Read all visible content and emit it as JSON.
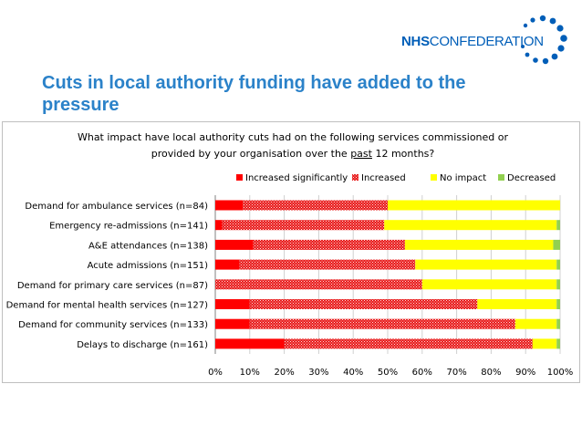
{
  "header": {
    "logo_bold": "NHS",
    "logo_light": "CONFEDERATION",
    "slide_title": "Cuts in local authority funding have added to the pressure"
  },
  "colors": {
    "increased_significantly": "#FF0000",
    "increased": "#E81818",
    "no_impact": "#FFFF00",
    "decreased": "#92D050",
    "title_blue": "#2B82C9",
    "logo_blue": "#005EB8"
  },
  "chart_data": {
    "type": "bar",
    "orientation": "horizontal",
    "stacked": "percent",
    "title_line1": "What impact have local authority cuts had on the following services commissioned or",
    "title_line2_pre": "provided by your organisation over the ",
    "title_line2_underlined": "past",
    "title_line2_post": " 12 months?",
    "legend_position": "top",
    "categories": [
      "Demand for ambulance services (n=84)",
      "Emergency re-admissions (n=141)",
      "A&E attendances (n=138)",
      "Acute admissions (n=151)",
      "Demand for primary care services (n=87)",
      "Demand for mental health services (n=127)",
      "Demand for community services (n=133)",
      "Delays to discharge (n=161)"
    ],
    "series": [
      {
        "name": "Increased significantly",
        "values": [
          8,
          2,
          11,
          7,
          0,
          10,
          10,
          20
        ]
      },
      {
        "name": "Increased",
        "values": [
          42,
          47,
          44,
          51,
          60,
          66,
          77,
          72
        ]
      },
      {
        "name": "No impact",
        "values": [
          50,
          50,
          43,
          41,
          39,
          23,
          12,
          7
        ]
      },
      {
        "name": "Decreased",
        "values": [
          0,
          1,
          2,
          1,
          1,
          1,
          1,
          1
        ]
      }
    ],
    "xlim": [
      0,
      100
    ],
    "x_ticks": [
      "0%",
      "10%",
      "20%",
      "30%",
      "40%",
      "50%",
      "60%",
      "70%",
      "80%",
      "90%",
      "100%"
    ],
    "grid": true
  }
}
